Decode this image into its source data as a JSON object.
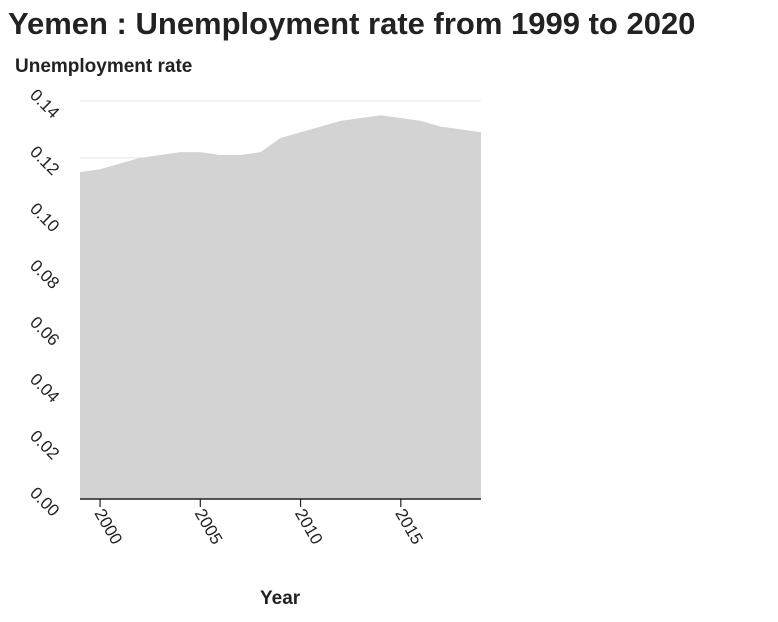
{
  "chart_data": {
    "type": "area",
    "title": "Yemen : Unemployment rate from 1999 to 2020",
    "xlabel": "Year",
    "ylabel": "Unemployment rate",
    "xlim": [
      1999,
      2019
    ],
    "ylim": [
      0,
      0.14
    ],
    "x_ticks": [
      2000,
      2005,
      2010,
      2015
    ],
    "x_tick_labels": [
      "2000",
      "2005",
      "2010",
      "2015"
    ],
    "y_ticks": [
      0,
      0.02,
      0.04,
      0.06,
      0.08,
      0.1,
      0.12,
      0.14
    ],
    "y_tick_labels": [
      "0.00",
      "0.02",
      "0.04",
      "0.06",
      "0.08",
      "0.10",
      "0.12",
      "0.14"
    ],
    "grid": "horizontal",
    "fill_color": "#d3d3d3",
    "x": [
      1999,
      2000,
      2001,
      2002,
      2003,
      2004,
      2005,
      2006,
      2007,
      2008,
      2009,
      2010,
      2011,
      2012,
      2013,
      2014,
      2015,
      2016,
      2017,
      2018,
      2019
    ],
    "values": [
      0.115,
      0.116,
      0.118,
      0.12,
      0.121,
      0.122,
      0.122,
      0.121,
      0.121,
      0.122,
      0.127,
      0.129,
      0.131,
      0.133,
      0.134,
      0.135,
      0.134,
      0.133,
      0.131,
      0.13,
      0.129
    ]
  }
}
